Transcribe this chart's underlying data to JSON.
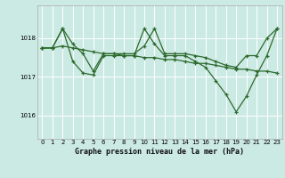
{
  "background_color": "#cceae4",
  "grid_color": "#ffffff",
  "line_color": "#2d6a2d",
  "title": "Graphe pression niveau de la mer (hPa)",
  "xlim": [
    -0.5,
    23.5
  ],
  "ylim": [
    1015.4,
    1018.85
  ],
  "yticks": [
    1016,
    1017,
    1018
  ],
  "xticks": [
    0,
    1,
    2,
    3,
    4,
    5,
    6,
    7,
    8,
    9,
    10,
    11,
    12,
    13,
    14,
    15,
    16,
    17,
    18,
    19,
    20,
    21,
    22,
    23
  ],
  "series": [
    {
      "x": [
        0,
        1,
        2,
        3,
        4,
        5,
        6,
        7,
        8,
        9,
        10,
        11,
        12,
        13,
        14,
        15,
        16,
        17,
        18,
        19,
        20,
        21,
        22,
        23
      ],
      "y": [
        1017.75,
        1017.75,
        1017.8,
        1017.75,
        1017.7,
        1017.65,
        1017.6,
        1017.6,
        1017.55,
        1017.55,
        1017.5,
        1017.5,
        1017.45,
        1017.45,
        1017.4,
        1017.35,
        1017.35,
        1017.3,
        1017.25,
        1017.2,
        1017.2,
        1017.15,
        1017.15,
        1017.1
      ]
    },
    {
      "x": [
        0,
        1,
        2,
        3,
        4,
        5,
        6,
        7,
        8,
        9,
        10,
        11,
        12,
        13,
        14,
        15,
        16,
        17,
        18,
        19,
        20,
        21,
        22,
        23
      ],
      "y": [
        1017.75,
        1017.75,
        1018.25,
        1017.85,
        1017.6,
        1017.15,
        1017.6,
        1017.6,
        1017.6,
        1017.6,
        1017.8,
        1018.25,
        1017.6,
        1017.6,
        1017.6,
        1017.55,
        1017.5,
        1017.4,
        1017.3,
        1017.25,
        1017.55,
        1017.55,
        1018.0,
        1018.25
      ]
    },
    {
      "x": [
        0,
        1,
        2,
        3,
        4,
        5,
        6,
        7,
        8,
        9,
        10,
        11,
        12,
        13,
        14,
        15,
        16,
        17,
        18,
        19,
        20,
        21,
        22,
        23
      ],
      "y": [
        1017.75,
        1017.75,
        1018.25,
        1017.4,
        1017.1,
        1017.05,
        1017.55,
        1017.55,
        1017.55,
        1017.55,
        1018.25,
        1017.85,
        1017.55,
        1017.55,
        1017.55,
        1017.4,
        1017.25,
        1016.9,
        1016.55,
        1016.1,
        1016.5,
        1017.05,
        1017.55,
        1018.25
      ]
    }
  ]
}
